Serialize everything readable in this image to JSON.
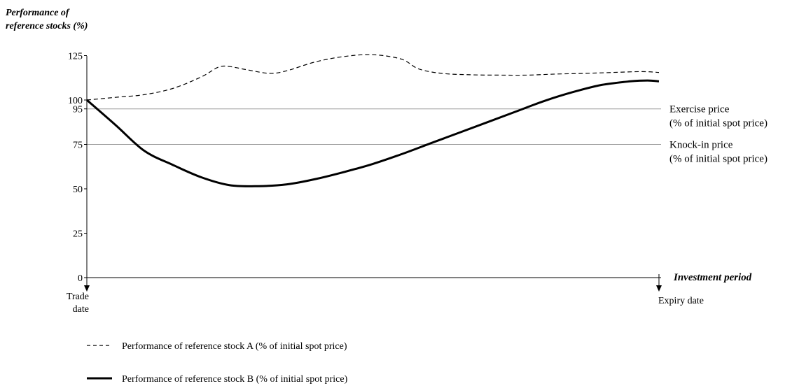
{
  "chart_data": {
    "type": "line",
    "ylabel_line1": "Performance of",
    "ylabel_line2": "reference stocks (%)",
    "xlabel": "Investment period",
    "ylim": [
      0,
      125
    ],
    "yticks": [
      {
        "value": 0,
        "label": "0"
      },
      {
        "value": 25,
        "label": "25"
      },
      {
        "value": 50,
        "label": "50"
      },
      {
        "value": 75,
        "label": "75"
      },
      {
        "value": 95,
        "label": "95"
      },
      {
        "value": 100,
        "label": "100"
      },
      {
        "value": 125,
        "label": "125"
      }
    ],
    "x_start": {
      "line1": "Trade",
      "line2": "date"
    },
    "x_end": {
      "line1": "Expiry date"
    },
    "reference_lines": [
      {
        "value": 95,
        "label_line1": "Exercise price",
        "label_line2": "(% of initial spot price)"
      },
      {
        "value": 75,
        "label_line1": "Knock-in price",
        "label_line2": "(% of initial spot price)"
      }
    ],
    "x_domain": [
      0,
      100
    ],
    "series": [
      {
        "name": "Performance of reference stock A (% of initial spot price)",
        "style": "dashed",
        "x": [
          0,
          5,
          10,
          15,
          20,
          23,
          25,
          28,
          32,
          35,
          40,
          45,
          50,
          55,
          58,
          62,
          67,
          72,
          77,
          82,
          87,
          92,
          97,
          100
        ],
        "y": [
          100,
          101.5,
          103,
          106.5,
          113,
          118.5,
          118.8,
          117,
          115,
          116.5,
          121.5,
          124.5,
          125.5,
          123,
          117.5,
          115,
          114.2,
          114,
          114,
          114.6,
          115,
          115.5,
          116,
          115.5
        ]
      },
      {
        "name": "Performance of reference stock B (% of initial spot price)",
        "style": "solid",
        "x": [
          0,
          5,
          10,
          15,
          20,
          25,
          30,
          35,
          40,
          45,
          50,
          55,
          60,
          65,
          70,
          75,
          80,
          85,
          90,
          95,
          98,
          100
        ],
        "y": [
          100,
          86,
          71.5,
          63.5,
          56.5,
          52,
          51.5,
          52.5,
          55.5,
          59.5,
          64,
          69.5,
          75.5,
          81.5,
          87.5,
          93.5,
          99.5,
          104.5,
          108.5,
          110.5,
          111,
          110.5
        ]
      }
    ],
    "legend": [
      {
        "label": "Performance of reference stock A (% of initial spot price)",
        "style": "dashed"
      },
      {
        "label": "Performance of reference stock B (% of initial spot price)",
        "style": "solid"
      }
    ],
    "legend_position": "bottom-left"
  }
}
